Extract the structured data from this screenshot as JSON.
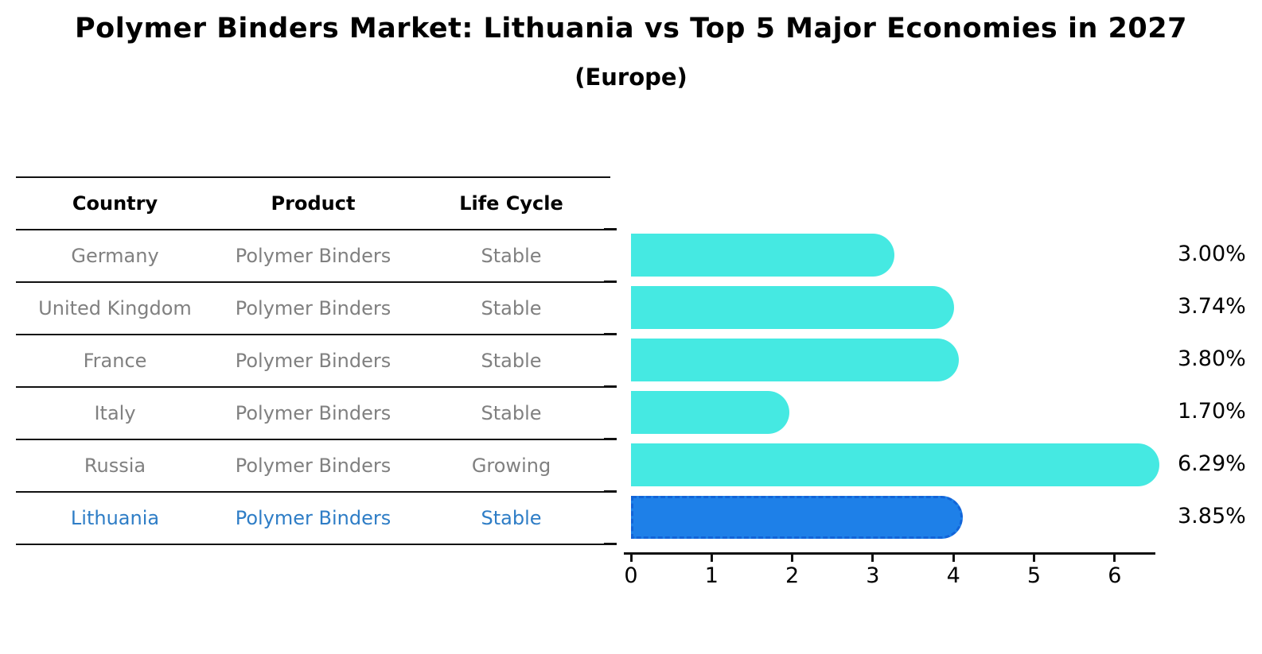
{
  "title": "Polymer Binders Market: Lithuania vs Top 5 Major Economies in 2027",
  "subtitle": "(Europe)",
  "table": {
    "headers": [
      "Country",
      "Product",
      "Life Cycle"
    ],
    "rows": [
      {
        "country": "Germany",
        "product": "Polymer Binders",
        "life_cycle": "Stable",
        "highlight": false
      },
      {
        "country": "United Kingdom",
        "product": "Polymer Binders",
        "life_cycle": "Stable",
        "highlight": false
      },
      {
        "country": "France",
        "product": "Polymer Binders",
        "life_cycle": "Stable",
        "highlight": false
      },
      {
        "country": "Italy",
        "product": "Polymer Binders",
        "life_cycle": "Stable",
        "highlight": false
      },
      {
        "country": "Russia",
        "product": "Polymer Binders",
        "life_cycle": "Growing",
        "highlight": false
      },
      {
        "country": "Lithuania",
        "product": "Polymer Binders",
        "life_cycle": "Stable",
        "highlight": true
      }
    ]
  },
  "chart_data": {
    "type": "bar",
    "orientation": "horizontal",
    "title": "Polymer Binders Market: Lithuania vs Top 5 Major Economies in 2027 (Europe)",
    "categories": [
      "Germany",
      "United Kingdom",
      "France",
      "Italy",
      "Russia",
      "Lithuania"
    ],
    "values": [
      3.0,
      3.74,
      3.8,
      1.7,
      6.29,
      3.85
    ],
    "value_labels": [
      "3.00%",
      "3.74%",
      "3.80%",
      "1.70%",
      "6.29%",
      "3.85%"
    ],
    "xlabel": "",
    "ylabel": "",
    "xlim": [
      0,
      6.5
    ],
    "x_ticks": [
      0,
      1,
      2,
      3,
      4,
      5,
      6
    ],
    "grid": false,
    "legend": false,
    "highlight_index": 5,
    "bar_color": "#45E9E2",
    "highlight_bar_color": "#1E80E8",
    "highlight_border_color": "#1264D8",
    "highlight_text_color": "#2E7DC6",
    "text_color": "#808080",
    "axis_color": "#111111"
  }
}
